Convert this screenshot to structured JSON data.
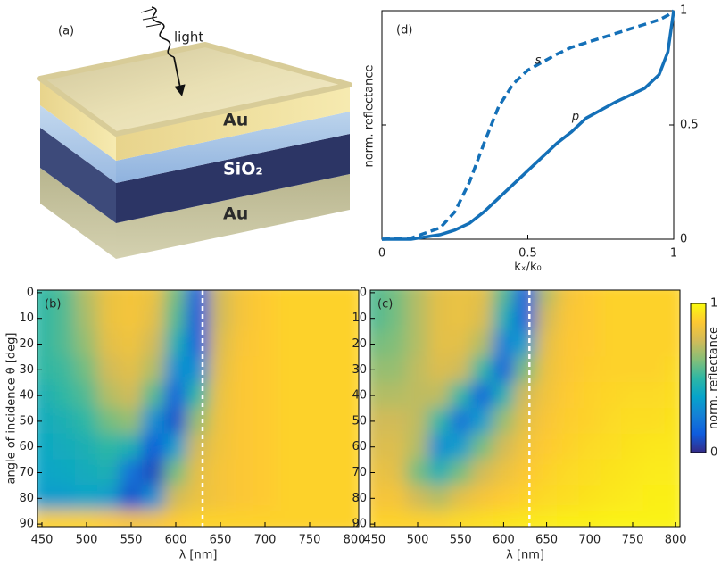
{
  "diagram": {
    "label": "(a)",
    "light": "light",
    "layers": [
      "Au",
      "SiO₂",
      "Au"
    ]
  },
  "chart_data": [
    {
      "type": "line",
      "label": "(d)",
      "xlabel": "kₓ/k₀",
      "ylabel": "norm. reflectance",
      "x": [
        0,
        0.1,
        0.2,
        0.25,
        0.3,
        0.35,
        0.4,
        0.45,
        0.5,
        0.6,
        0.65,
        0.7,
        0.8,
        0.85,
        0.9,
        0.95,
        0.98,
        1
      ],
      "series": [
        {
          "name": "s",
          "color": "#1470b8",
          "dashed": true,
          "axis": "y2",
          "values": [
            0,
            0.005,
            0.05,
            0.12,
            0.25,
            0.42,
            0.58,
            0.68,
            0.74,
            0.81,
            0.84,
            0.86,
            0.9,
            0.92,
            0.94,
            0.96,
            0.98,
            1
          ]
        },
        {
          "name": "p",
          "color": "#1470b8",
          "dashed": false,
          "axis": "y2",
          "values": [
            0,
            0,
            0.02,
            0.04,
            0.07,
            0.12,
            0.18,
            0.24,
            0.3,
            0.42,
            0.47,
            0.53,
            0.6,
            0.63,
            0.66,
            0.72,
            0.82,
            1
          ]
        }
      ],
      "xlim": [
        0,
        1
      ],
      "xticks": [
        0,
        0.5,
        1
      ],
      "y2lim": [
        0,
        1
      ],
      "y2ticks": [
        0,
        0.5,
        1
      ]
    },
    {
      "type": "heatmap",
      "label": "(b)",
      "xlabel": "λ [nm]",
      "ylabel": "angle of incidence θ  [deg]",
      "x": [
        450,
        475,
        500,
        525,
        550,
        575,
        600,
        625,
        650,
        675,
        700,
        725,
        750,
        775,
        800
      ],
      "y": [
        0,
        10,
        20,
        30,
        40,
        50,
        60,
        70,
        80,
        90
      ],
      "z": [
        [
          0.5,
          0.55,
          0.7,
          0.82,
          0.85,
          0.82,
          0.6,
          0.15,
          0.75,
          0.85,
          0.88,
          0.9,
          0.9,
          0.9,
          0.9
        ],
        [
          0.5,
          0.55,
          0.68,
          0.82,
          0.85,
          0.8,
          0.55,
          0.12,
          0.75,
          0.85,
          0.88,
          0.9,
          0.9,
          0.9,
          0.9
        ],
        [
          0.5,
          0.55,
          0.65,
          0.8,
          0.83,
          0.75,
          0.45,
          0.15,
          0.78,
          0.86,
          0.88,
          0.9,
          0.9,
          0.9,
          0.9
        ],
        [
          0.5,
          0.52,
          0.6,
          0.75,
          0.8,
          0.7,
          0.3,
          0.3,
          0.8,
          0.87,
          0.88,
          0.9,
          0.9,
          0.9,
          0.9
        ],
        [
          0.45,
          0.5,
          0.55,
          0.7,
          0.75,
          0.55,
          0.15,
          0.5,
          0.82,
          0.87,
          0.88,
          0.9,
          0.9,
          0.9,
          0.9
        ],
        [
          0.42,
          0.45,
          0.5,
          0.6,
          0.65,
          0.3,
          0.1,
          0.65,
          0.83,
          0.87,
          0.88,
          0.9,
          0.9,
          0.9,
          0.9
        ],
        [
          0.4,
          0.42,
          0.45,
          0.5,
          0.45,
          0.12,
          0.35,
          0.75,
          0.84,
          0.87,
          0.88,
          0.9,
          0.9,
          0.9,
          0.9
        ],
        [
          0.38,
          0.4,
          0.42,
          0.45,
          0.2,
          0.08,
          0.6,
          0.8,
          0.85,
          0.87,
          0.88,
          0.9,
          0.9,
          0.9,
          0.9
        ],
        [
          0.35,
          0.35,
          0.38,
          0.35,
          0.1,
          0.3,
          0.75,
          0.82,
          0.85,
          0.87,
          0.88,
          0.9,
          0.9,
          0.9,
          0.9
        ],
        [
          0.9,
          0.9,
          0.9,
          0.88,
          0.85,
          0.85,
          0.88,
          0.9,
          0.9,
          0.9,
          0.9,
          0.9,
          0.9,
          0.9,
          0.9
        ]
      ],
      "xlim": [
        445,
        805
      ],
      "xticks": [
        450,
        500,
        550,
        600,
        650,
        700,
        750,
        800
      ],
      "ylim": [
        -1,
        91
      ],
      "yticks": [
        0,
        10,
        20,
        30,
        40,
        50,
        60,
        70,
        80,
        90
      ],
      "y_reversed": true,
      "vline": 630,
      "vline_color": "#ffffff",
      "colormap": [
        "#352a87",
        "#0f5cdd",
        "#1481d6",
        "#06a4ca",
        "#2eb7a4",
        "#87bf77",
        "#d1bb59",
        "#fec832",
        "#f9fb0e"
      ]
    },
    {
      "type": "heatmap",
      "label": "(c)",
      "xlabel": "λ [nm]",
      "x": [
        450,
        475,
        500,
        525,
        550,
        575,
        600,
        625,
        650,
        675,
        700,
        725,
        750,
        775,
        800
      ],
      "y": [
        0,
        10,
        20,
        30,
        40,
        50,
        60,
        70,
        80,
        90
      ],
      "z": [
        [
          0.55,
          0.6,
          0.7,
          0.8,
          0.82,
          0.8,
          0.55,
          0.15,
          0.7,
          0.85,
          0.88,
          0.9,
          0.9,
          0.9,
          0.9
        ],
        [
          0.55,
          0.6,
          0.7,
          0.8,
          0.82,
          0.78,
          0.45,
          0.15,
          0.75,
          0.86,
          0.88,
          0.9,
          0.9,
          0.9,
          0.9
        ],
        [
          0.6,
          0.62,
          0.7,
          0.8,
          0.8,
          0.7,
          0.25,
          0.35,
          0.8,
          0.87,
          0.88,
          0.9,
          0.9,
          0.9,
          0.9
        ],
        [
          0.65,
          0.65,
          0.72,
          0.78,
          0.75,
          0.5,
          0.15,
          0.6,
          0.82,
          0.87,
          0.89,
          0.9,
          0.9,
          0.9,
          0.92
        ],
        [
          0.7,
          0.7,
          0.72,
          0.72,
          0.5,
          0.15,
          0.45,
          0.75,
          0.84,
          0.88,
          0.9,
          0.91,
          0.92,
          0.92,
          0.93
        ],
        [
          0.75,
          0.75,
          0.72,
          0.5,
          0.2,
          0.35,
          0.65,
          0.8,
          0.86,
          0.89,
          0.9,
          0.92,
          0.93,
          0.93,
          0.94
        ],
        [
          0.78,
          0.78,
          0.7,
          0.3,
          0.35,
          0.6,
          0.75,
          0.84,
          0.88,
          0.9,
          0.92,
          0.93,
          0.94,
          0.95,
          0.95
        ],
        [
          0.82,
          0.8,
          0.6,
          0.45,
          0.6,
          0.75,
          0.82,
          0.87,
          0.9,
          0.92,
          0.93,
          0.94,
          0.95,
          0.96,
          0.96
        ],
        [
          0.85,
          0.85,
          0.75,
          0.7,
          0.8,
          0.85,
          0.88,
          0.9,
          0.92,
          0.93,
          0.94,
          0.95,
          0.96,
          0.97,
          0.97
        ],
        [
          0.9,
          0.9,
          0.9,
          0.9,
          0.92,
          0.93,
          0.94,
          0.95,
          0.96,
          0.97,
          0.97,
          0.98,
          0.98,
          0.98,
          0.98
        ]
      ],
      "xlim": [
        445,
        805
      ],
      "xticks": [
        450,
        500,
        550,
        600,
        650,
        700,
        750,
        800
      ],
      "ylim": [
        -1,
        91
      ],
      "yticks": [
        0,
        10,
        20,
        30,
        40,
        50,
        60,
        70,
        80,
        90
      ],
      "y_reversed": true,
      "vline": 630,
      "vline_color": "#ffffff",
      "colormap": [
        "#352a87",
        "#0f5cdd",
        "#1481d6",
        "#06a4ca",
        "#2eb7a4",
        "#87bf77",
        "#d1bb59",
        "#fec832",
        "#f9fb0e"
      ],
      "colorbar": {
        "label": "norm. reflectance",
        "lim": [
          0,
          1
        ],
        "ticks": [
          0,
          1
        ]
      }
    }
  ]
}
